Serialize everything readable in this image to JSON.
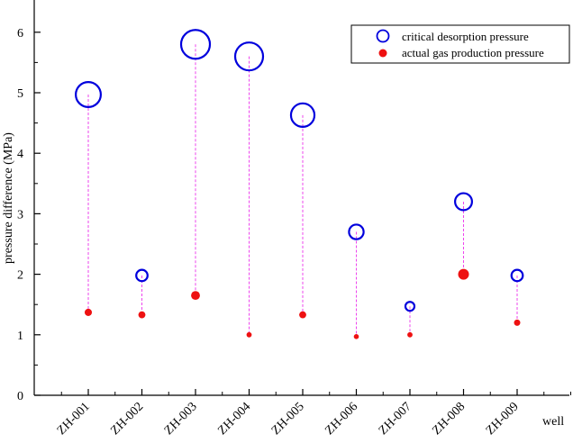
{
  "chart_data": {
    "type": "scatter",
    "title": "",
    "xlabel": "well",
    "ylabel": "pressure difference (MPa)",
    "ylim": [
      0,
      6.5
    ],
    "yticks": [
      "0",
      "1",
      "2",
      "3",
      "4",
      "5",
      "6"
    ],
    "categories": [
      "ZH-001",
      "ZH-002",
      "ZH-003",
      "ZH-004",
      "ZH-005",
      "ZH-006",
      "ZH-007",
      "ZH-008",
      "ZH-009"
    ],
    "legend_position": "top-right",
    "series": [
      {
        "name": "critical desorption pressure",
        "marker": "open-circle",
        "color": "#0000dd",
        "values": [
          4.97,
          1.98,
          5.8,
          5.6,
          4.63,
          2.7,
          1.47,
          3.2,
          1.98
        ]
      },
      {
        "name": "actual gas production pressure",
        "marker": "filled-circle",
        "color": "#ee1111",
        "values": [
          1.37,
          1.33,
          1.65,
          1.0,
          1.33,
          0.97,
          1.0,
          2.0,
          1.2
        ]
      }
    ],
    "connector_color": "#ee44ee"
  }
}
